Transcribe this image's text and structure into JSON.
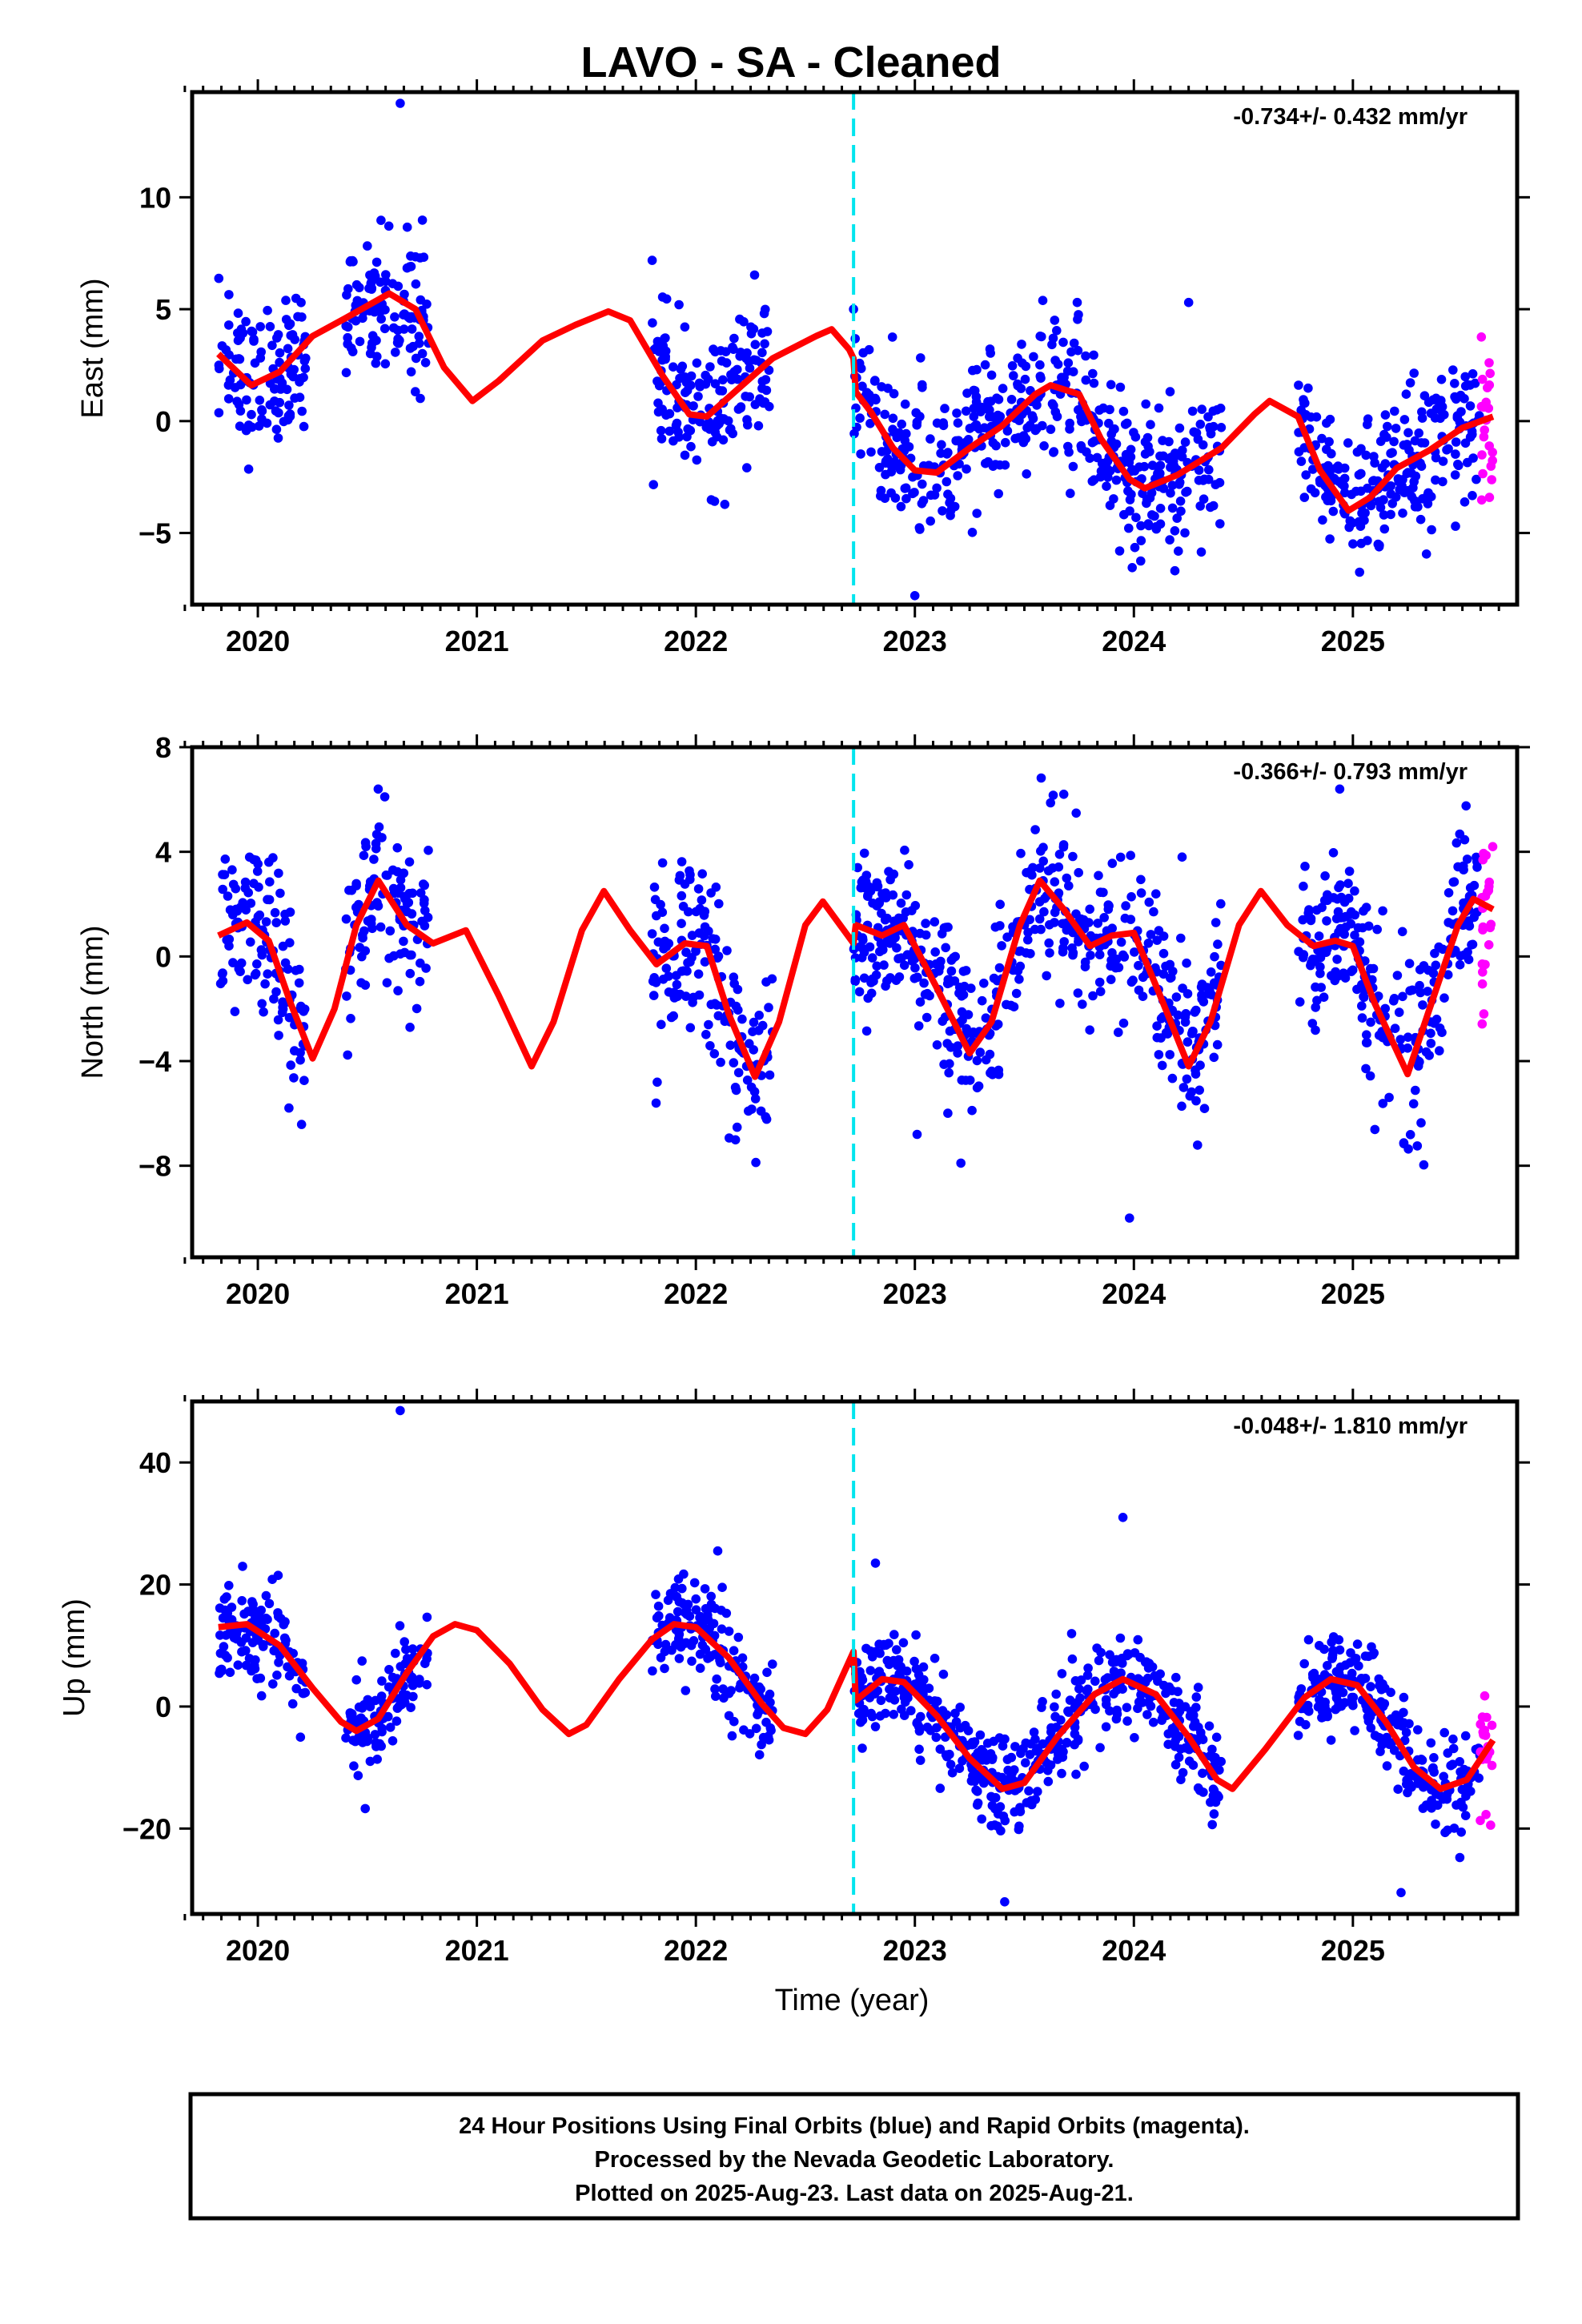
{
  "page": {
    "title": "LAVO  - SA - Cleaned"
  },
  "colors": {
    "final_orbits": "#0000ff",
    "rapid_orbits": "#ff00ff",
    "model": "#ff0000",
    "marker": "#00e5ee"
  },
  "footer": {
    "line1": "24 Hour Positions Using Final Orbits (blue) and Rapid Orbits (magenta).",
    "line2": "Processed by the Nevada Geodetic Laboratory.",
    "line3": "Plotted on 2025-Aug-23. Last data on 2025-Aug-21."
  },
  "chart_data": [
    {
      "type": "scatter",
      "component": "east",
      "ylabel": "East (mm)",
      "xlabel": "",
      "rate": "-0.734+/- 0.432 mm/yr",
      "xlim": [
        2019.7,
        2025.75
      ],
      "ylim": [
        -8.2,
        14.7
      ],
      "x_ticks": [
        2020,
        2021,
        2022,
        2023,
        2024,
        2025
      ],
      "y_ticks": [
        -5,
        0,
        5,
        10
      ],
      "x_tick_labels": [
        "2020",
        "2021",
        "2022",
        "2023",
        "2024",
        "2025"
      ],
      "y_tick_labels": [
        "−5",
        "0",
        "5",
        "10"
      ],
      "marker_x": 2022.72,
      "data_segments": [
        [
          2019.82,
          2020.22
        ],
        [
          2020.4,
          2020.78
        ],
        [
          2021.8,
          2022.35
        ],
        [
          2022.72,
          2024.4
        ],
        [
          2024.75,
          2025.58
        ]
      ],
      "rapid_segment": [
        2025.58,
        2025.64
      ],
      "noise": 1.6,
      "model_curve": [
        [
          2019.82,
          3.0
        ],
        [
          2019.97,
          1.6
        ],
        [
          2020.1,
          2.2
        ],
        [
          2020.25,
          3.8
        ],
        [
          2020.4,
          4.6
        ],
        [
          2020.6,
          5.7
        ],
        [
          2020.72,
          5.0
        ],
        [
          2020.85,
          2.4
        ],
        [
          2020.98,
          0.9
        ],
        [
          2021.1,
          1.8
        ],
        [
          2021.3,
          3.6
        ],
        [
          2021.45,
          4.3
        ],
        [
          2021.6,
          4.9
        ],
        [
          2021.7,
          4.5
        ],
        [
          2021.85,
          2.0
        ],
        [
          2021.97,
          0.3
        ],
        [
          2022.05,
          0.2
        ],
        [
          2022.2,
          1.5
        ],
        [
          2022.35,
          2.8
        ],
        [
          2022.55,
          3.8
        ],
        [
          2022.62,
          4.1
        ],
        [
          2022.7,
          3.2
        ],
        [
          2022.72,
          2.8
        ],
        [
          2022.73,
          1.3
        ],
        [
          2022.8,
          0.4
        ],
        [
          2022.9,
          -1.2
        ],
        [
          2023.0,
          -2.2
        ],
        [
          2023.1,
          -2.3
        ],
        [
          2023.25,
          -1.2
        ],
        [
          2023.4,
          -0.2
        ],
        [
          2023.55,
          1.2
        ],
        [
          2023.62,
          1.6
        ],
        [
          2023.75,
          1.2
        ],
        [
          2023.85,
          -0.8
        ],
        [
          2023.98,
          -2.6
        ],
        [
          2024.05,
          -3.0
        ],
        [
          2024.2,
          -2.4
        ],
        [
          2024.4,
          -1.2
        ],
        [
          2024.55,
          0.3
        ],
        [
          2024.62,
          0.9
        ],
        [
          2024.75,
          0.2
        ],
        [
          2024.85,
          -2.2
        ],
        [
          2024.98,
          -4.0
        ],
        [
          2025.08,
          -3.4
        ],
        [
          2025.2,
          -2.1
        ],
        [
          2025.35,
          -1.3
        ],
        [
          2025.5,
          -0.3
        ],
        [
          2025.64,
          0.2
        ]
      ],
      "outliers": [
        [
          2020.65,
          14.2
        ],
        [
          2022.72,
          5.0
        ],
        [
          2023.0,
          -7.8
        ],
        [
          2024.25,
          5.3
        ]
      ]
    },
    {
      "type": "scatter",
      "component": "north",
      "ylabel": "North (mm)",
      "xlabel": "",
      "rate": "-0.366+/- 0.793 mm/yr",
      "xlim": [
        2019.7,
        2025.75
      ],
      "ylim": [
        -11.5,
        8.0
      ],
      "x_ticks": [
        2020,
        2021,
        2022,
        2023,
        2024,
        2025
      ],
      "y_ticks": [
        -8,
        -4,
        0,
        4,
        8
      ],
      "x_tick_labels": [
        "2020",
        "2021",
        "2022",
        "2023",
        "2024",
        "2025"
      ],
      "y_tick_labels": [
        "−8",
        "−4",
        "0",
        "4",
        "8"
      ],
      "marker_x": 2022.72,
      "data_segments": [
        [
          2019.82,
          2020.22
        ],
        [
          2020.4,
          2020.78
        ],
        [
          2021.8,
          2022.35
        ],
        [
          2022.72,
          2024.4
        ],
        [
          2024.75,
          2025.58
        ]
      ],
      "rapid_segment": [
        2025.58,
        2025.64
      ],
      "noise": 1.6,
      "model_curve": [
        [
          2019.82,
          0.8
        ],
        [
          2019.95,
          1.3
        ],
        [
          2020.05,
          0.6
        ],
        [
          2020.15,
          -1.8
        ],
        [
          2020.25,
          -3.9
        ],
        [
          2020.35,
          -2.0
        ],
        [
          2020.45,
          1.2
        ],
        [
          2020.55,
          2.9
        ],
        [
          2020.68,
          1.2
        ],
        [
          2020.8,
          0.5
        ],
        [
          2020.95,
          1.0
        ],
        [
          2021.1,
          -1.5
        ],
        [
          2021.25,
          -4.2
        ],
        [
          2021.35,
          -2.5
        ],
        [
          2021.48,
          1.0
        ],
        [
          2021.58,
          2.5
        ],
        [
          2021.7,
          1.0
        ],
        [
          2021.82,
          -0.3
        ],
        [
          2021.95,
          0.5
        ],
        [
          2022.05,
          0.4
        ],
        [
          2022.15,
          -2.2
        ],
        [
          2022.27,
          -4.6
        ],
        [
          2022.38,
          -2.5
        ],
        [
          2022.5,
          1.2
        ],
        [
          2022.58,
          2.1
        ],
        [
          2022.72,
          0.5
        ],
        [
          2022.73,
          1.2
        ],
        [
          2022.85,
          0.8
        ],
        [
          2022.95,
          1.2
        ],
        [
          2023.1,
          -1.2
        ],
        [
          2023.25,
          -3.7
        ],
        [
          2023.35,
          -2.5
        ],
        [
          2023.48,
          1.2
        ],
        [
          2023.57,
          2.9
        ],
        [
          2023.68,
          1.8
        ],
        [
          2023.8,
          0.4
        ],
        [
          2023.9,
          0.8
        ],
        [
          2024.0,
          0.9
        ],
        [
          2024.12,
          -1.5
        ],
        [
          2024.25,
          -4.2
        ],
        [
          2024.35,
          -2.5
        ],
        [
          2024.48,
          1.2
        ],
        [
          2024.58,
          2.5
        ],
        [
          2024.7,
          1.2
        ],
        [
          2024.82,
          0.4
        ],
        [
          2024.92,
          0.6
        ],
        [
          2025.0,
          0.4
        ],
        [
          2025.1,
          -1.8
        ],
        [
          2025.25,
          -4.5
        ],
        [
          2025.35,
          -2.0
        ],
        [
          2025.48,
          1.2
        ],
        [
          2025.55,
          2.2
        ],
        [
          2025.64,
          1.8
        ]
      ],
      "outliers": [
        [
          2023.68,
          6.2
        ],
        [
          2023.98,
          -10.0
        ],
        [
          2024.22,
          3.8
        ],
        [
          2023.01,
          -6.8
        ],
        [
          2023.21,
          -7.9
        ],
        [
          2024.94,
          6.4
        ]
      ]
    },
    {
      "type": "scatter",
      "component": "up",
      "ylabel": "Up (mm)",
      "xlabel": "Time (year)",
      "rate": "-0.048+/- 1.810 mm/yr",
      "xlim": [
        2019.7,
        2025.75
      ],
      "ylim": [
        -34,
        50
      ],
      "x_ticks": [
        2020,
        2021,
        2022,
        2023,
        2024,
        2025
      ],
      "y_ticks": [
        -20,
        0,
        20,
        40
      ],
      "x_tick_labels": [
        "2020",
        "2021",
        "2022",
        "2023",
        "2024",
        "2025"
      ],
      "y_tick_labels": [
        "−20",
        "0",
        "20",
        "40"
      ],
      "marker_x": 2022.72,
      "data_segments": [
        [
          2019.82,
          2020.22
        ],
        [
          2020.4,
          2020.78
        ],
        [
          2021.8,
          2022.35
        ],
        [
          2022.72,
          2024.4
        ],
        [
          2024.75,
          2025.58
        ]
      ],
      "rapid_segment": [
        2025.58,
        2025.64
      ],
      "noise": 4.0,
      "model_curve": [
        [
          2019.82,
          13.0
        ],
        [
          2019.95,
          13.5
        ],
        [
          2020.1,
          10.0
        ],
        [
          2020.25,
          3.0
        ],
        [
          2020.38,
          -2.5
        ],
        [
          2020.45,
          -4.0
        ],
        [
          2020.55,
          -2.0
        ],
        [
          2020.68,
          5.5
        ],
        [
          2020.8,
          11.5
        ],
        [
          2020.9,
          13.5
        ],
        [
          2021.0,
          12.5
        ],
        [
          2021.15,
          7.0
        ],
        [
          2021.3,
          -0.5
        ],
        [
          2021.42,
          -4.5
        ],
        [
          2021.5,
          -3.0
        ],
        [
          2021.65,
          4.5
        ],
        [
          2021.8,
          11.0
        ],
        [
          2021.9,
          13.5
        ],
        [
          2022.0,
          13.0
        ],
        [
          2022.15,
          8.0
        ],
        [
          2022.3,
          0.5
        ],
        [
          2022.4,
          -3.5
        ],
        [
          2022.5,
          -4.5
        ],
        [
          2022.6,
          -0.5
        ],
        [
          2022.72,
          9.0
        ],
        [
          2022.73,
          1.0
        ],
        [
          2022.85,
          4.5
        ],
        [
          2022.95,
          4.0
        ],
        [
          2023.1,
          -1.5
        ],
        [
          2023.25,
          -8.5
        ],
        [
          2023.4,
          -13.5
        ],
        [
          2023.5,
          -12.5
        ],
        [
          2023.65,
          -5.0
        ],
        [
          2023.82,
          2.0
        ],
        [
          2023.95,
          4.5
        ],
        [
          2024.1,
          2.0
        ],
        [
          2024.25,
          -5.0
        ],
        [
          2024.38,
          -12.0
        ],
        [
          2024.45,
          -13.5
        ],
        [
          2024.6,
          -7.0
        ],
        [
          2024.78,
          1.5
        ],
        [
          2024.9,
          4.5
        ],
        [
          2025.02,
          3.5
        ],
        [
          2025.15,
          -2.5
        ],
        [
          2025.28,
          -10.0
        ],
        [
          2025.4,
          -13.5
        ],
        [
          2025.52,
          -12.0
        ],
        [
          2025.64,
          -5.5
        ]
      ],
      "outliers": [
        [
          2020.65,
          48.5
        ],
        [
          2023.95,
          31.0
        ],
        [
          2023.41,
          -32.0
        ],
        [
          2025.22,
          -30.5
        ],
        [
          2022.82,
          23.5
        ],
        [
          2022.1,
          25.5
        ]
      ]
    }
  ]
}
